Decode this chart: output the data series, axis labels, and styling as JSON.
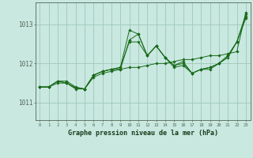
{
  "background_color": "#c8e8e0",
  "grid_color": "#a0c8b8",
  "line_color": "#1a6b1a",
  "marker_color": "#1a6b1a",
  "title": "Graphe pression niveau de la mer (hPa)",
  "ylabel_ticks": [
    1011,
    1012,
    1013
  ],
  "xlim": [
    -0.5,
    23.5
  ],
  "ylim": [
    1010.55,
    1013.55
  ],
  "xticks": [
    0,
    1,
    2,
    3,
    4,
    5,
    6,
    7,
    8,
    9,
    10,
    11,
    12,
    13,
    14,
    15,
    16,
    17,
    18,
    19,
    20,
    21,
    22,
    23
  ],
  "series": [
    {
      "x": [
        0,
        1,
        2,
        3,
        4,
        5,
        6,
        7,
        8,
        9,
        10,
        11,
        12,
        13,
        14,
        15,
        16,
        17,
        18,
        19,
        20,
        21,
        22,
        23
      ],
      "y": [
        1011.4,
        1011.4,
        1011.55,
        1011.55,
        1011.4,
        1011.35,
        1011.65,
        1011.75,
        1011.8,
        1011.85,
        1011.9,
        1011.9,
        1011.95,
        1012.0,
        1012.0,
        1012.05,
        1012.1,
        1012.1,
        1012.15,
        1012.2,
        1012.2,
        1012.25,
        1012.3,
        1013.3
      ]
    },
    {
      "x": [
        0,
        1,
        2,
        3,
        4,
        5,
        6,
        7,
        8,
        9,
        10,
        11,
        12,
        13,
        14,
        15,
        16,
        17,
        18,
        19,
        20,
        21,
        22,
        23
      ],
      "y": [
        1011.4,
        1011.4,
        1011.5,
        1011.5,
        1011.35,
        1011.35,
        1011.7,
        1011.8,
        1011.85,
        1011.9,
        1012.85,
        1012.75,
        1012.2,
        1012.45,
        1012.15,
        1011.9,
        1011.95,
        1011.75,
        1011.85,
        1011.85,
        1012.0,
        1012.2,
        1012.55,
        1013.2
      ]
    },
    {
      "x": [
        0,
        1,
        2,
        3,
        4,
        5,
        6,
        7,
        8,
        9,
        10,
        11,
        12,
        13,
        14,
        15,
        16,
        17,
        18,
        19,
        20,
        21,
        22,
        23
      ],
      "y": [
        1011.4,
        1011.4,
        1011.55,
        1011.5,
        1011.38,
        1011.35,
        1011.7,
        1011.8,
        1011.85,
        1011.85,
        1012.6,
        1012.75,
        1012.2,
        1012.45,
        1012.15,
        1011.95,
        1012.0,
        1011.75,
        1011.85,
        1011.9,
        1012.0,
        1012.15,
        1012.55,
        1013.25
      ]
    },
    {
      "x": [
        0,
        1,
        2,
        3,
        4,
        5,
        6,
        7,
        8,
        9,
        10,
        11,
        12,
        13,
        14,
        15,
        16,
        17,
        18,
        19,
        20,
        21,
        22,
        23
      ],
      "y": [
        1011.4,
        1011.4,
        1011.55,
        1011.5,
        1011.38,
        1011.35,
        1011.7,
        1011.8,
        1011.85,
        1011.9,
        1012.55,
        1012.55,
        1012.2,
        1012.45,
        1012.15,
        1011.95,
        1012.05,
        1011.75,
        1011.85,
        1011.9,
        1012.0,
        1012.2,
        1012.55,
        1013.15
      ]
    }
  ]
}
